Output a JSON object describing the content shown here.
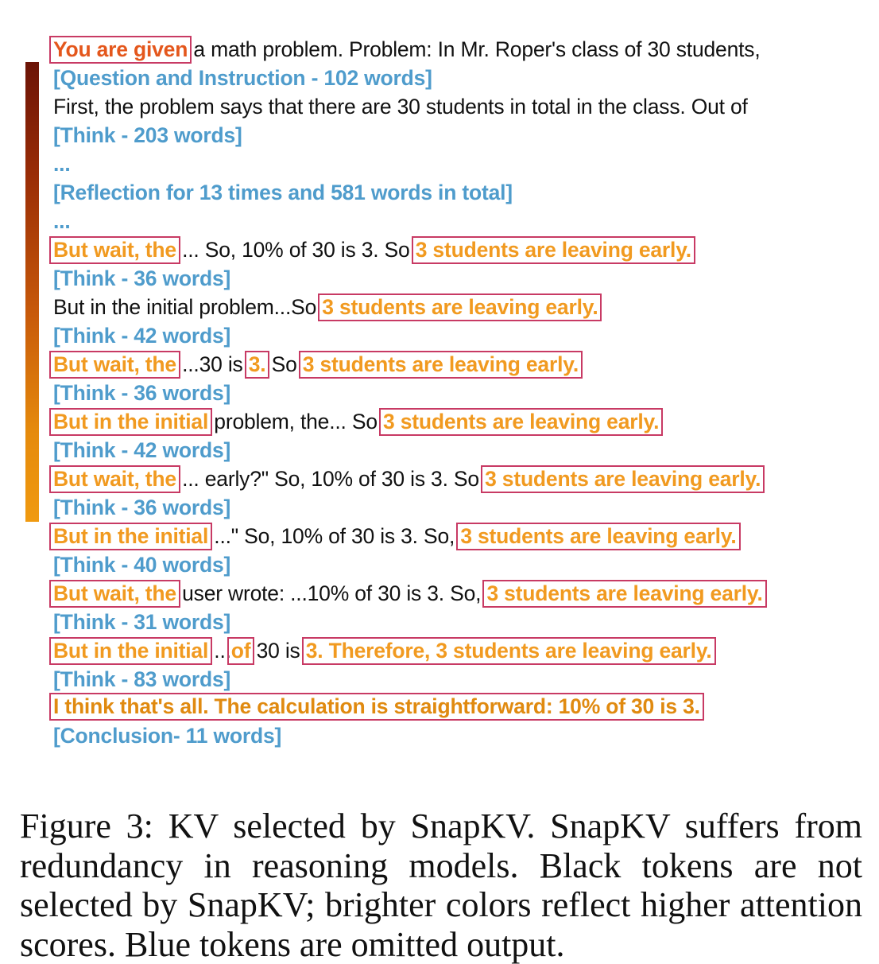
{
  "lines": [
    {
      "id": "l1",
      "segments": [
        {
          "text": "You are given",
          "style": "red-orange"
        },
        {
          "text": " a math problem. Problem: In Mr. Roper's class of 30 students,",
          "style": "black"
        }
      ]
    },
    {
      "id": "l2",
      "segments": [
        {
          "text": "[Question and Instruction - 102 words]",
          "style": "blue"
        }
      ]
    },
    {
      "id": "l3",
      "segments": [
        {
          "text": "First, the problem says that there are 30 students in total in the class. Out of",
          "style": "black"
        }
      ]
    },
    {
      "id": "l4",
      "segments": [
        {
          "text": "[Think - 203 words]",
          "style": "blue"
        }
      ]
    },
    {
      "id": "l5",
      "segments": [
        {
          "text": "...",
          "style": "blue"
        }
      ]
    },
    {
      "id": "l6",
      "segments": [
        {
          "text": "[Reflection for 13 times and 581 words in total]",
          "style": "blue"
        }
      ]
    },
    {
      "id": "l7",
      "segments": [
        {
          "text": "...",
          "style": "blue"
        }
      ]
    },
    {
      "id": "l8",
      "segments": [
        {
          "text": "But wait, the",
          "style": "orange"
        },
        {
          "text": " ... So, 10% of 30 is 3. So ",
          "style": "black"
        },
        {
          "text": "3 students are leaving early.",
          "style": "orange"
        }
      ]
    },
    {
      "id": "l9",
      "segments": [
        {
          "text": "[Think - 36 words]",
          "style": "blue"
        }
      ]
    },
    {
      "id": "l10",
      "segments": [
        {
          "text": "But in the initial problem...So ",
          "style": "black"
        },
        {
          "text": "3 students are leaving early.",
          "style": "orange"
        }
      ]
    },
    {
      "id": "l11",
      "segments": [
        {
          "text": "[Think - 42 words]",
          "style": "blue"
        }
      ]
    },
    {
      "id": "l12",
      "segments": [
        {
          "text": "But wait, the",
          "style": "orange"
        },
        {
          "text": " ...30 is ",
          "style": "black"
        },
        {
          "text": "3.",
          "style": "orange"
        },
        {
          "text": " So ",
          "style": "black"
        },
        {
          "text": "3 students are leaving early.",
          "style": "orange"
        }
      ]
    },
    {
      "id": "l13",
      "segments": [
        {
          "text": "[Think - 36 words]",
          "style": "blue"
        }
      ]
    },
    {
      "id": "l14",
      "segments": [
        {
          "text": "But in the initial",
          "style": "orange"
        },
        {
          "text": " problem, the... So ",
          "style": "black"
        },
        {
          "text": "3 students are leaving early.",
          "style": "orange"
        }
      ]
    },
    {
      "id": "l15",
      "segments": [
        {
          "text": "[Think - 42 words]",
          "style": "blue"
        }
      ]
    },
    {
      "id": "l16",
      "segments": [
        {
          "text": "But wait, the",
          "style": "orange"
        },
        {
          "text": " ... early?\" So, 10% of 30 is 3. So ",
          "style": "black"
        },
        {
          "text": "3 students are leaving early.",
          "style": "orange"
        }
      ]
    },
    {
      "id": "l17",
      "segments": [
        {
          "text": "[Think - 36 words]",
          "style": "blue"
        }
      ]
    },
    {
      "id": "l18",
      "segments": [
        {
          "text": "But in the initial",
          "style": "orange"
        },
        {
          "text": " ...\" So, 10% of 30 is 3. So, ",
          "style": "black"
        },
        {
          "text": "3 students are leaving early.",
          "style": "orange"
        }
      ]
    },
    {
      "id": "l19",
      "segments": [
        {
          "text": "[Think - 40 words]",
          "style": "blue"
        }
      ]
    },
    {
      "id": "l20",
      "segments": [
        {
          "text": "But wait, the",
          "style": "orange"
        },
        {
          "text": " user wrote: ...10% of 30 is 3. So, ",
          "style": "black"
        },
        {
          "text": "3 students are leaving early.",
          "style": "orange"
        }
      ]
    },
    {
      "id": "l21",
      "segments": [
        {
          "text": "[Think - 31 words]",
          "style": "blue"
        }
      ]
    },
    {
      "id": "l22",
      "segments": [
        {
          "text": "But in the initial",
          "style": "orange"
        },
        {
          "text": " ...",
          "style": "black"
        },
        {
          "text": "of",
          "style": "orange"
        },
        {
          "text": " 30 is ",
          "style": "black"
        },
        {
          "text": "3. Therefore, 3 students are leaving early.",
          "style": "orange"
        }
      ]
    },
    {
      "id": "l23",
      "segments": [
        {
          "text": "[Think - 83 words]",
          "style": "blue"
        }
      ]
    },
    {
      "id": "l24",
      "segments": [
        {
          "text": "I think that's all. The calculation is straightforward: 10% of 30 is 3.",
          "style": "dark-orange"
        }
      ]
    },
    {
      "id": "l25",
      "segments": [
        {
          "text": "[Conclusion- 11 words]",
          "style": "blue"
        }
      ]
    }
  ],
  "caption": "Figure 3: KV selected by SnapKV. SnapKV suffers from redundancy in reasoning models. Black tokens are not selected by SnapKV; brighter colors reflect higher attention scores. Blue tokens are omitted output."
}
